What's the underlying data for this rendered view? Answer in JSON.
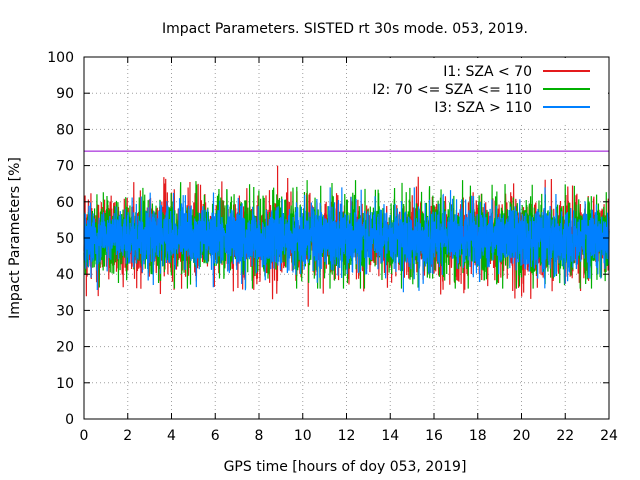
{
  "chart_data": {
    "type": "line",
    "title": "Impact Parameters. SISTED rt 30s mode. 053, 2019.",
    "xlabel": "GPS time [hours of doy 053, 2019]",
    "ylabel": "Impact Parameters [%]",
    "xlim": [
      0,
      24
    ],
    "ylim": [
      0,
      100
    ],
    "xticks": [
      0,
      2,
      4,
      6,
      8,
      10,
      12,
      14,
      16,
      18,
      20,
      22,
      24
    ],
    "yticks": [
      0,
      10,
      20,
      30,
      40,
      50,
      60,
      70,
      80,
      90,
      100
    ],
    "grid": true,
    "legend_position": "top-right",
    "reference_line": {
      "y": 74,
      "color": "#9400d3"
    },
    "series": [
      {
        "name": "I1: SZA < 70",
        "color": "#e41a1c",
        "mean": 50,
        "typical_range": [
          40,
          61
        ],
        "min": 31,
        "max": 70
      },
      {
        "name": "I2: 70 <= SZA <= 110",
        "color": "#00b000",
        "mean": 50,
        "typical_range": [
          40,
          61
        ],
        "min": 36,
        "max": 66
      },
      {
        "name": "I3: SZA > 110",
        "color": "#0080ff",
        "mean": 50,
        "typical_range": [
          42,
          59
        ],
        "min": 35,
        "max": 64
      }
    ]
  }
}
